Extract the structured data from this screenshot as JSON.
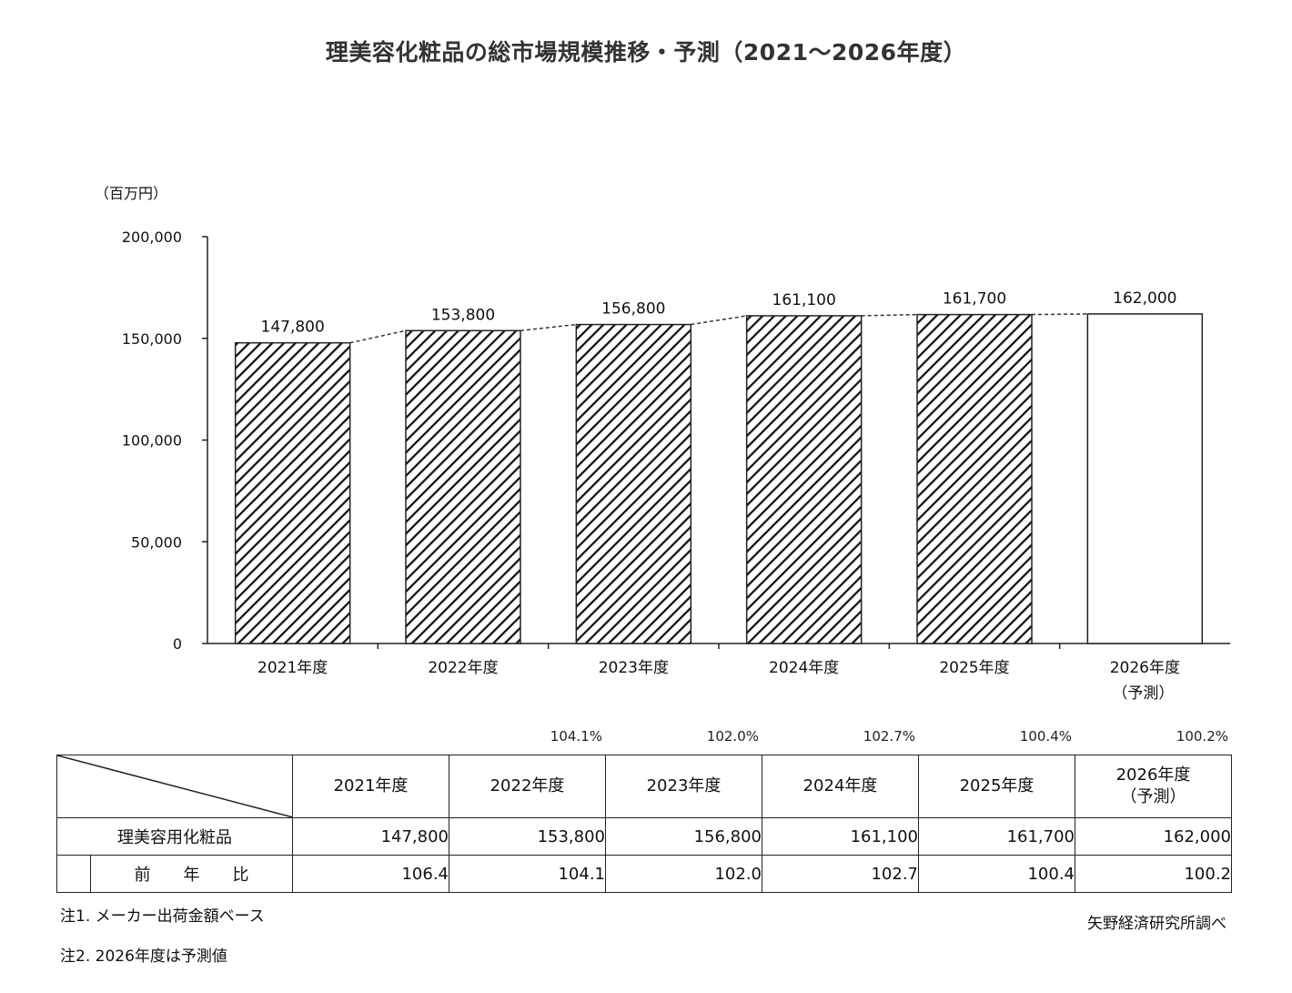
{
  "title": "理美容化粧品の総市場規模推移・予測（2021〜2026年度）",
  "chart_data": {
    "type": "bar",
    "title": "理美容化粧品の総市場規模推移・予測（2021〜2026年度）",
    "unit": "（百万円）",
    "ylim": [
      0,
      200000
    ],
    "yticks": [
      0,
      50000,
      100000,
      150000,
      200000
    ],
    "ytick_labels": [
      "0",
      "50,000",
      "100,000",
      "150,000",
      "200,000"
    ],
    "categories": [
      "2021年度",
      "2022年度",
      "2023年度",
      "2024年度",
      "2025年度",
      "2026年度"
    ],
    "category_sub": [
      "",
      "",
      "",
      "",
      "",
      "（予測）"
    ],
    "values": [
      147800,
      153800,
      156800,
      161100,
      161700,
      162000
    ],
    "value_labels": [
      "147,800",
      "153,800",
      "156,800",
      "161,100",
      "161,700",
      "162,000"
    ],
    "forecast": [
      false,
      false,
      false,
      false,
      false,
      true
    ],
    "hatched_color": "#111111",
    "forecast_fill": "#ffffff",
    "connector": "dashed",
    "grid": false
  },
  "growth_labels": [
    "104.1%",
    "102.0%",
    "102.7%",
    "100.4%",
    "100.2%"
  ],
  "table": {
    "headers": [
      "2021年度",
      "2022年度",
      "2023年度",
      "2024年度",
      "2025年度",
      "2026年度"
    ],
    "header_sub": "（予測）",
    "row_label": "理美容用化粧品",
    "row_values": [
      "147,800",
      "153,800",
      "156,800",
      "161,100",
      "161,700",
      "162,000"
    ],
    "yoy_label": "前　　年　　比",
    "yoy_values": [
      "106.4",
      "104.1",
      "102.0",
      "102.7",
      "100.4",
      "100.2"
    ]
  },
  "notes": [
    "注1. メーカー出荷金額ベース",
    "注2. 2026年度は予測値"
  ],
  "source": "矢野経済研究所調べ"
}
